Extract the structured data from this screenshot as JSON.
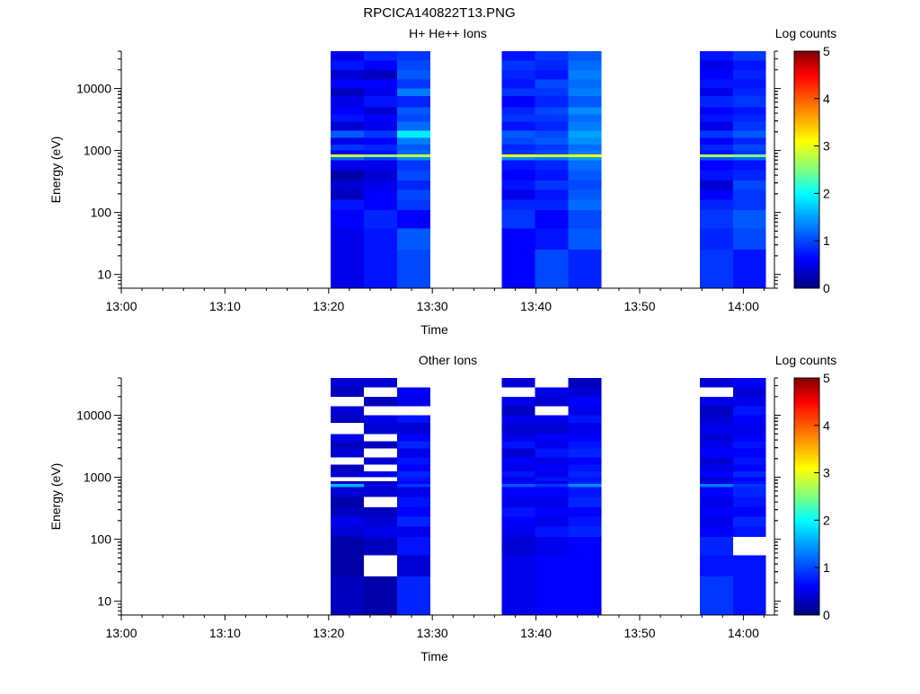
{
  "figure": {
    "title": "RPCICA140822T13.PNG"
  },
  "chart_data": [
    {
      "type": "heatmap",
      "title": "H+ He++ Ions",
      "xlabel": "Time",
      "ylabel": "Energy (eV)",
      "yscale": "log",
      "xlim": [
        "13:00",
        "14:03"
      ],
      "ylim": [
        6,
        40000
      ],
      "x_ticks": [
        "13:00",
        "13:10",
        "13:20",
        "13:30",
        "13:40",
        "13:50",
        "14:00"
      ],
      "y_ticks": [
        "10",
        "100",
        "1000",
        "10000"
      ],
      "colorbar": {
        "label": "Log counts",
        "range": [
          0,
          5
        ],
        "ticks": [
          "0",
          "1",
          "2",
          "3",
          "4",
          "5"
        ],
        "colormap": "rainbow"
      },
      "energy_bin_edges": [
        6,
        25,
        55,
        110,
        160,
        230,
        330,
        480,
        700,
        780,
        870,
        1000,
        1250,
        1600,
        2100,
        2900,
        3800,
        5000,
        7500,
        10000,
        14000,
        20000,
        28000,
        40000
      ],
      "columns": [
        {
          "start": "13:20:12",
          "end": "13:23:24",
          "values": [
            0.5,
            0.5,
            0.6,
            0.7,
            0.3,
            0.4,
            0.2,
            0.5,
            1.2,
            2.9,
            0.6,
            0.9,
            0.5,
            1.1,
            0.4,
            0.7,
            0.6,
            0.5,
            0.3,
            0.6,
            0.4,
            0.7,
            0.5
          ]
        },
        {
          "start": "13:23:24",
          "end": "13:26:36",
          "values": [
            0.7,
            0.7,
            0.8,
            0.6,
            0.6,
            0.5,
            0.4,
            0.5,
            1.0,
            2.6,
            0.7,
            0.8,
            0.6,
            0.9,
            0.5,
            0.6,
            0.4,
            0.7,
            0.5,
            0.6,
            0.3,
            0.6,
            0.8
          ]
        },
        {
          "start": "13:26:36",
          "end": "13:29:48",
          "values": [
            1.0,
            1.1,
            0.6,
            0.9,
            1.0,
            0.8,
            1.0,
            0.9,
            1.4,
            2.8,
            1.2,
            1.1,
            1.3,
            1.9,
            1.2,
            1.0,
            1.1,
            0.8,
            1.3,
            0.9,
            1.1,
            1.0,
            0.9
          ]
        },
        {
          "start": "13:36:42",
          "end": "13:39:54",
          "values": [
            0.6,
            0.6,
            0.9,
            0.8,
            0.5,
            0.7,
            0.6,
            0.7,
            1.4,
            3.0,
            0.9,
            0.8,
            1.0,
            1.1,
            0.7,
            0.9,
            0.8,
            0.6,
            0.9,
            0.7,
            0.8,
            0.9,
            0.7
          ]
        },
        {
          "start": "13:39:54",
          "end": "13:43:06",
          "values": [
            1.0,
            0.7,
            0.6,
            0.8,
            0.7,
            0.9,
            0.7,
            0.8,
            1.3,
            2.9,
            1.0,
            0.9,
            1.1,
            1.0,
            0.8,
            0.9,
            1.0,
            0.8,
            0.9,
            1.0,
            0.7,
            0.8,
            0.9
          ]
        },
        {
          "start": "13:43:06",
          "end": "13:46:18",
          "values": [
            0.8,
            1.1,
            1.0,
            1.2,
            1.1,
            1.0,
            1.1,
            1.2,
            1.5,
            3.1,
            1.3,
            1.2,
            1.4,
            1.5,
            1.3,
            1.2,
            1.4,
            1.1,
            1.3,
            1.2,
            1.3,
            1.2,
            1.1
          ]
        },
        {
          "start": "13:55:48",
          "end": "13:59:00",
          "values": [
            0.9,
            0.8,
            0.9,
            0.8,
            0.6,
            0.4,
            0.7,
            0.6,
            1.1,
            2.7,
            0.7,
            0.8,
            0.6,
            0.9,
            0.5,
            0.7,
            0.6,
            0.8,
            0.5,
            0.7,
            0.6,
            0.5,
            0.7
          ]
        },
        {
          "start": "13:59:00",
          "end": "14:02:12",
          "values": [
            0.7,
            1.0,
            1.1,
            0.9,
            0.9,
            1.0,
            0.8,
            0.7,
            1.2,
            2.5,
            0.9,
            1.0,
            0.8,
            1.1,
            0.9,
            0.8,
            0.7,
            0.9,
            0.8,
            0.7,
            0.8,
            0.7,
            0.9
          ]
        }
      ]
    },
    {
      "type": "heatmap",
      "title": "Other Ions",
      "xlabel": "Time",
      "ylabel": "Energy (eV)",
      "yscale": "log",
      "xlim": [
        "13:00",
        "14:03"
      ],
      "ylim": [
        6,
        40000
      ],
      "x_ticks": [
        "13:00",
        "13:10",
        "13:20",
        "13:30",
        "13:40",
        "13:50",
        "14:00"
      ],
      "y_ticks": [
        "10",
        "100",
        "1000",
        "10000"
      ],
      "colorbar": {
        "label": "Log counts",
        "range": [
          0,
          5
        ],
        "ticks": [
          "0",
          "1",
          "2",
          "3",
          "4",
          "5"
        ],
        "colormap": "rainbow"
      },
      "energy_bin_edges": [
        6,
        25,
        55,
        110,
        160,
        230,
        330,
        480,
        700,
        780,
        870,
        1000,
        1250,
        1600,
        2100,
        2900,
        3800,
        5000,
        7500,
        10000,
        14000,
        20000,
        28000,
        40000
      ],
      "columns": [
        {
          "start": "13:20:12",
          "end": "13:23:24",
          "values": [
            0.3,
            0.2,
            0.2,
            0.4,
            0.5,
            0.3,
            0.2,
            0.4,
            1.6,
            0.3,
            null,
            0.4,
            0.3,
            null,
            0.4,
            0.3,
            0.5,
            null,
            0.3,
            0.4,
            null,
            0.3,
            0.4
          ]
        },
        {
          "start": "13:23:24",
          "end": "13:26:36",
          "values": [
            0.2,
            null,
            0.3,
            0.5,
            0.4,
            0.3,
            null,
            0.4,
            0.5,
            0.3,
            null,
            0.5,
            null,
            0.4,
            null,
            0.3,
            null,
            0.4,
            0.5,
            null,
            0.3,
            null,
            0.4
          ]
        },
        {
          "start": "13:26:36",
          "end": "13:29:48",
          "values": [
            0.8,
            0.4,
            0.7,
            0.5,
            0.8,
            0.6,
            0.7,
            0.5,
            0.9,
            0.6,
            0.7,
            0.8,
            0.6,
            0.7,
            0.5,
            0.8,
            0.6,
            0.4,
            0.7,
            null,
            0.5,
            0.6,
            null
          ]
        },
        {
          "start": "13:36:42",
          "end": "13:39:54",
          "values": [
            0.5,
            0.5,
            0.4,
            0.5,
            0.6,
            0.7,
            0.5,
            0.6,
            1.1,
            0.6,
            0.5,
            0.7,
            0.5,
            0.6,
            0.4,
            0.7,
            0.5,
            0.4,
            0.5,
            0.3,
            0.5,
            null,
            0.4
          ]
        },
        {
          "start": "13:39:54",
          "end": "13:43:06",
          "values": [
            0.6,
            0.6,
            0.5,
            0.7,
            0.5,
            0.6,
            0.5,
            0.6,
            0.9,
            0.5,
            0.7,
            0.5,
            0.6,
            0.5,
            0.7,
            0.5,
            0.6,
            0.4,
            0.5,
            null,
            0.4,
            0.5,
            null
          ]
        },
        {
          "start": "13:43:06",
          "end": "13:46:18",
          "values": [
            0.6,
            0.6,
            0.6,
            0.8,
            0.7,
            0.6,
            0.8,
            0.7,
            1.4,
            0.8,
            0.7,
            0.8,
            0.7,
            0.6,
            0.8,
            0.7,
            0.6,
            0.5,
            0.7,
            0.5,
            0.6,
            0.4,
            0.3
          ]
        },
        {
          "start": "13:55:48",
          "end": "13:59:00",
          "values": [
            0.9,
            0.7,
            0.8,
            0.6,
            0.5,
            0.6,
            0.5,
            0.6,
            1.3,
            0.5,
            0.4,
            0.6,
            0.5,
            0.4,
            0.6,
            0.5,
            0.4,
            0.5,
            0.4,
            0.3,
            0.5,
            null,
            0.4
          ]
        },
        {
          "start": "13:59:00",
          "end": "14:02:12",
          "values": [
            0.7,
            0.7,
            null,
            0.7,
            0.8,
            0.6,
            0.7,
            0.8,
            0.9,
            0.7,
            0.6,
            0.8,
            0.6,
            0.7,
            0.6,
            0.7,
            0.6,
            0.5,
            0.6,
            0.7,
            0.5,
            0.4,
            0.6
          ]
        }
      ]
    }
  ]
}
